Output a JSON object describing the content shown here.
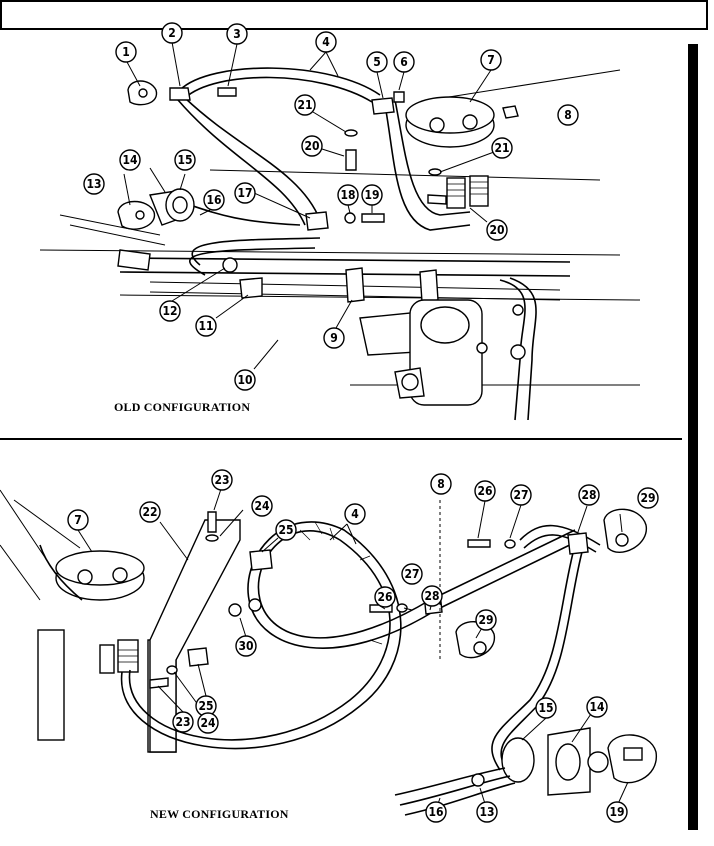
{
  "captions": {
    "old": "OLD CONFIGURATION",
    "new": "NEW CONFIGURATION"
  },
  "old_callouts": [
    "1",
    "2",
    "3",
    "4",
    "5",
    "6",
    "7",
    "8",
    "21",
    "20",
    "21",
    "14",
    "15",
    "16",
    "13",
    "17",
    "18",
    "19",
    "20",
    "12",
    "11",
    "9",
    "10"
  ],
  "new_callouts": [
    "23",
    "24",
    "7",
    "22",
    "25",
    "4",
    "8",
    "26",
    "27",
    "28",
    "29",
    "30",
    "26",
    "27",
    "28",
    "29",
    "25",
    "23",
    "24",
    "15",
    "14",
    "16",
    "13",
    "19"
  ]
}
